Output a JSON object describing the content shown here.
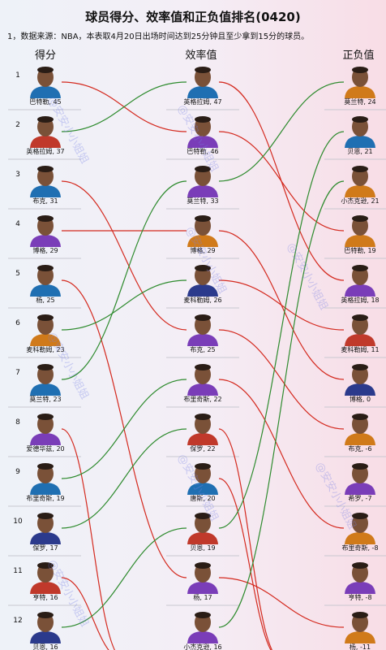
{
  "title": "球员得分、效率值和正负值排名(0420)",
  "note": "1，数据来源：NBA，本表取4月20日出场时间达到25分钟且至少拿到15分的球员。",
  "watermark": "@安安小小姐姐",
  "colors": {
    "up_line": "#2e8b2e",
    "down_line": "#d42a1f",
    "row_line": "#c8c8d0",
    "jersey_a": "#2b3a8c",
    "jersey_b": "#c0392b"
  },
  "chart_data": {
    "type": "bump",
    "columns": [
      {
        "key": "points",
        "label": "得分"
      },
      {
        "key": "efficiency",
        "label": "效率值"
      },
      {
        "key": "plus_minus",
        "label": "正负值"
      }
    ],
    "rankings": {
      "points": [
        {
          "name": "巴特勒",
          "value": 45
        },
        {
          "name": "英格拉姆",
          "value": 37
        },
        {
          "name": "布克",
          "value": 31
        },
        {
          "name": "博格",
          "value": 29
        },
        {
          "name": "杨",
          "value": 25
        },
        {
          "name": "麦科勒姆",
          "value": 23
        },
        {
          "name": "莫兰特",
          "value": 23
        },
        {
          "name": "爱德华兹",
          "value": 20
        },
        {
          "name": "布里奇斯",
          "value": 19
        },
        {
          "name": "保罗",
          "value": 17
        },
        {
          "name": "亨特",
          "value": 16
        },
        {
          "name": "贝恩",
          "value": 16
        }
      ],
      "efficiency": [
        {
          "name": "英格拉姆",
          "value": 47
        },
        {
          "name": "巴特勒",
          "value": 46
        },
        {
          "name": "莫兰特",
          "value": 33
        },
        {
          "name": "博格",
          "value": 29
        },
        {
          "name": "麦科勒姆",
          "value": 26
        },
        {
          "name": "布克",
          "value": 25
        },
        {
          "name": "布里奇斯",
          "value": 22
        },
        {
          "name": "保罗",
          "value": 22
        },
        {
          "name": "唐斯",
          "value": 20
        },
        {
          "name": "贝恩",
          "value": 19
        },
        {
          "name": "杨",
          "value": 17
        },
        {
          "name": "小杰克逊",
          "value": 16
        }
      ],
      "plus_minus": [
        {
          "name": "莫兰特",
          "value": 24
        },
        {
          "name": "贝恩",
          "value": 21
        },
        {
          "name": "小杰克逊",
          "value": 21
        },
        {
          "name": "巴特勒",
          "value": 19
        },
        {
          "name": "英格拉姆",
          "value": 18
        },
        {
          "name": "麦科勒姆",
          "value": 11
        },
        {
          "name": "博格",
          "value": 0
        },
        {
          "name": "布克",
          "value": -6
        },
        {
          "name": "希罗",
          "value": -7
        },
        {
          "name": "布里奇斯",
          "value": -8
        },
        {
          "name": "亨特",
          "value": -8
        },
        {
          "name": "杨",
          "value": -11
        }
      ]
    }
  }
}
